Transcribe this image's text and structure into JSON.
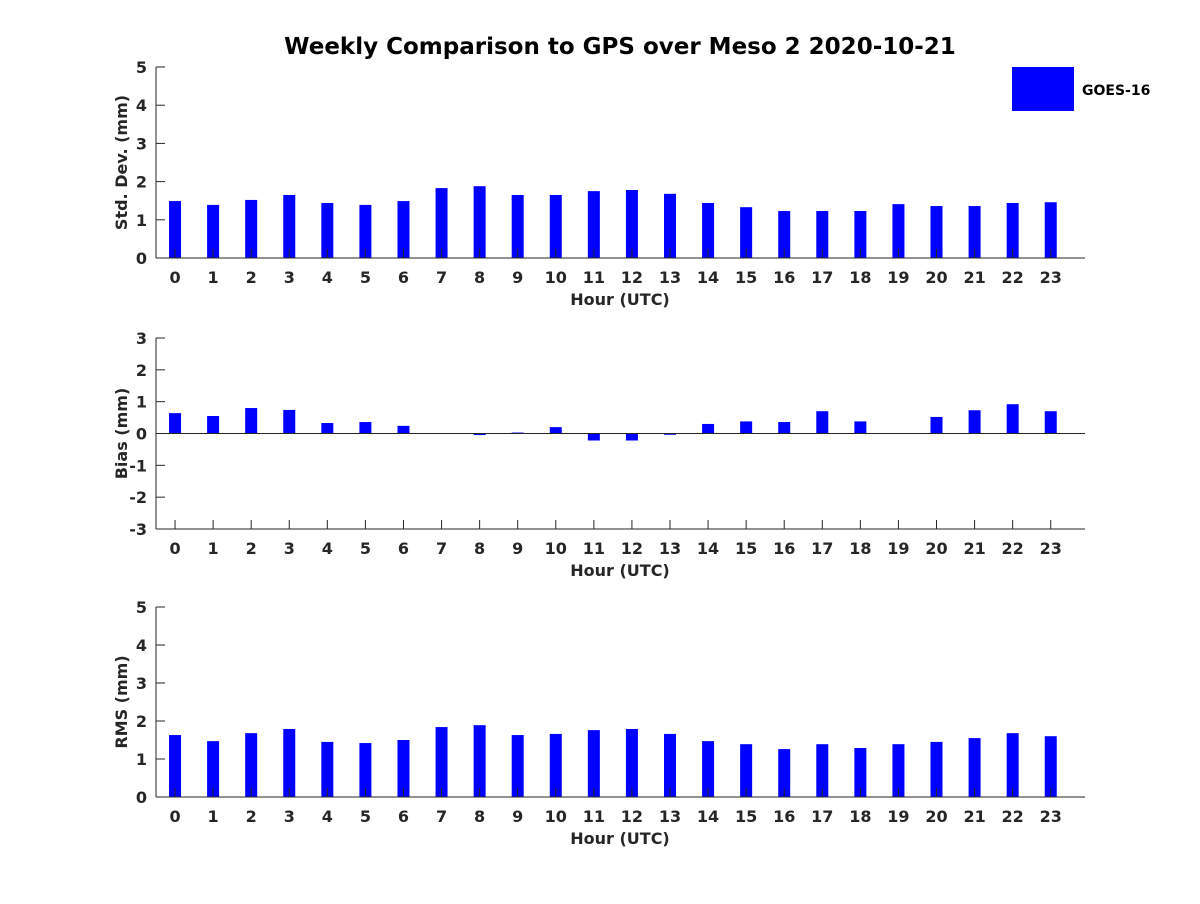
{
  "chart_data": [
    {
      "type": "bar",
      "title": "Weekly Comparison to GPS over Meso 2 2020-10-21",
      "xlabel": "Hour (UTC)",
      "ylabel": "Std. Dev. (mm)",
      "ylim": [
        0,
        5
      ],
      "yticks": [
        0,
        1,
        2,
        3,
        4,
        5
      ],
      "categories": [
        "0",
        "1",
        "2",
        "3",
        "4",
        "5",
        "6",
        "7",
        "8",
        "9",
        "10",
        "11",
        "12",
        "13",
        "14",
        "15",
        "16",
        "17",
        "18",
        "19",
        "20",
        "21",
        "22",
        "23"
      ],
      "series": [
        {
          "name": "GOES-16",
          "color": "#0000ff",
          "values": [
            1.49,
            1.39,
            1.52,
            1.65,
            1.44,
            1.39,
            1.49,
            1.83,
            1.88,
            1.65,
            1.65,
            1.75,
            1.78,
            1.68,
            1.44,
            1.33,
            1.23,
            1.23,
            1.23,
            1.41,
            1.36,
            1.36,
            1.44,
            1.46
          ]
        }
      ],
      "legend": {
        "position": "top-right",
        "entries": [
          "GOES-16"
        ]
      }
    },
    {
      "type": "bar",
      "xlabel": "Hour (UTC)",
      "ylabel": "Bias (mm)",
      "ylim": [
        -3,
        3
      ],
      "yticks": [
        -3,
        -2,
        -1,
        0,
        1,
        2,
        3
      ],
      "categories": [
        "0",
        "1",
        "2",
        "3",
        "4",
        "5",
        "6",
        "7",
        "8",
        "9",
        "10",
        "11",
        "12",
        "13",
        "14",
        "15",
        "16",
        "17",
        "18",
        "19",
        "20",
        "21",
        "22",
        "23"
      ],
      "series": [
        {
          "name": "GOES-16",
          "color": "#0000ff",
          "values": [
            0.64,
            0.55,
            0.8,
            0.74,
            0.33,
            0.36,
            0.24,
            0.01,
            -0.05,
            0.03,
            0.2,
            -0.22,
            -0.22,
            -0.04,
            0.3,
            0.38,
            0.36,
            0.7,
            0.38,
            0.0,
            0.52,
            0.73,
            0.92,
            0.7
          ]
        }
      ]
    },
    {
      "type": "bar",
      "xlabel": "Hour (UTC)",
      "ylabel": "RMS (mm)",
      "ylim": [
        0,
        5
      ],
      "yticks": [
        0,
        1,
        2,
        3,
        4,
        5
      ],
      "categories": [
        "0",
        "1",
        "2",
        "3",
        "4",
        "5",
        "6",
        "7",
        "8",
        "9",
        "10",
        "11",
        "12",
        "13",
        "14",
        "15",
        "16",
        "17",
        "18",
        "19",
        "20",
        "21",
        "22",
        "23"
      ],
      "series": [
        {
          "name": "GOES-16",
          "color": "#0000ff",
          "values": [
            1.63,
            1.47,
            1.68,
            1.79,
            1.45,
            1.42,
            1.5,
            1.84,
            1.89,
            1.63,
            1.66,
            1.76,
            1.79,
            1.66,
            1.47,
            1.39,
            1.26,
            1.39,
            1.29,
            1.39,
            1.45,
            1.55,
            1.68,
            1.6
          ]
        }
      ]
    }
  ]
}
